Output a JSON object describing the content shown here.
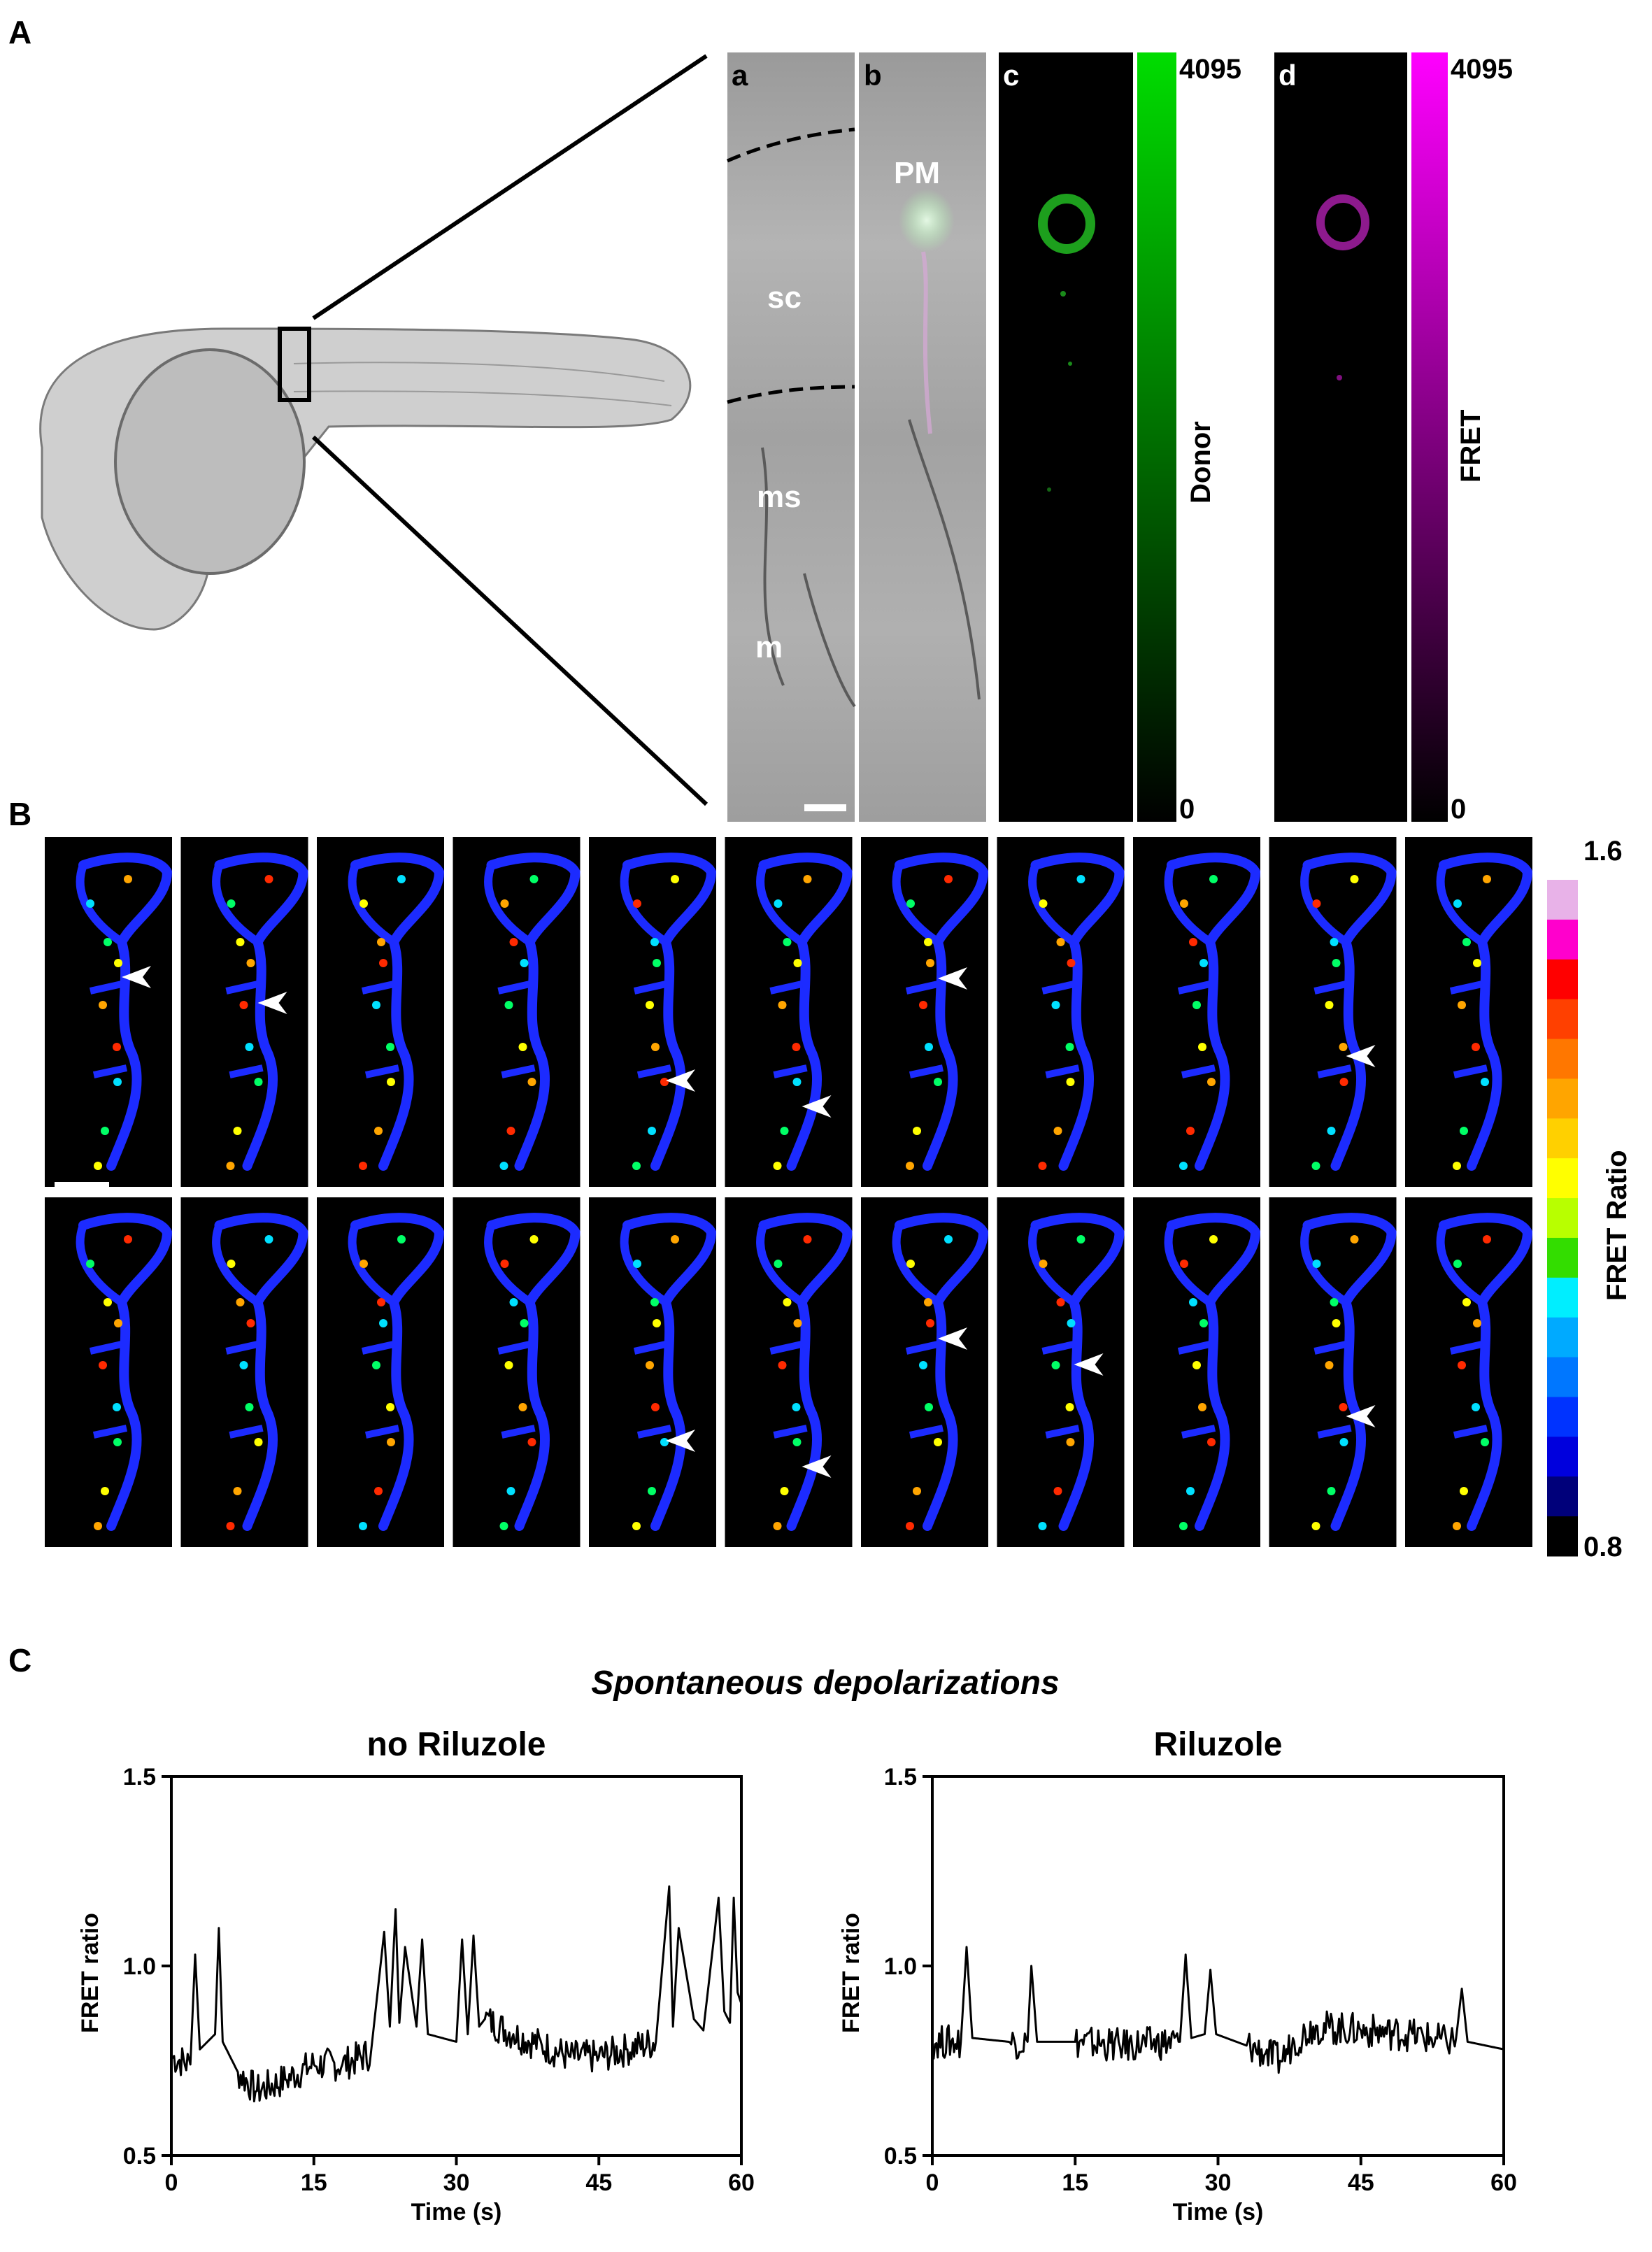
{
  "panels": {
    "A": {
      "letter": "A",
      "subpanels": {
        "a": "a",
        "b": "b",
        "c": "c",
        "d": "d"
      },
      "region_labels": {
        "pm": "PM",
        "sc": "sc",
        "ms": "ms",
        "m": "m"
      },
      "donor_bar": {
        "label": "Donor",
        "max": "4095",
        "min": "0",
        "color": "#00dd00"
      },
      "fret_bar": {
        "label": "FRET",
        "max": "4095",
        "min": "0",
        "color": "#ff00ff"
      }
    },
    "B": {
      "letter": "B",
      "colorbar": {
        "label": "FRET Ratio",
        "max": "1.6",
        "min": "0.8",
        "colors": [
          "#e8b2e8",
          "#ff00cc",
          "#ff0000",
          "#ff4000",
          "#ff7700",
          "#ffa500",
          "#ffd000",
          "#ffff00",
          "#b8ff00",
          "#33dd00",
          "#00eeff",
          "#00aaff",
          "#0077ff",
          "#0033ff",
          "#0000dd",
          "#00007a",
          "#000000"
        ]
      },
      "frames_per_row": 11,
      "arrowheads_row1": [
        0,
        1,
        4,
        5,
        6,
        9
      ],
      "arrowheads_row2": [
        4,
        5,
        6,
        7,
        9
      ]
    },
    "C": {
      "letter": "C",
      "title": "Spontaneous depolarizations"
    }
  },
  "chart_data": [
    {
      "type": "line",
      "title": "no Riluzole",
      "xlabel": "Time (s)",
      "ylabel": "FRET ratio",
      "xlim": [
        0,
        60
      ],
      "ylim": [
        0.5,
        1.5
      ],
      "xticks": [
        "0",
        "15",
        "30",
        "45",
        "60"
      ],
      "yticks": [
        "0.5",
        "1.0",
        "1.5"
      ],
      "series": [
        {
          "x": [
            0,
            2,
            2.5,
            3,
            4.6,
            5,
            5.4,
            7,
            9,
            12,
            15,
            18,
            21,
            22.4,
            23,
            23.6,
            24,
            24.6,
            25.8,
            26.4,
            27,
            30,
            30.6,
            31.2,
            31.8,
            32.4,
            33,
            36,
            39,
            42,
            45,
            48,
            51,
            52.4,
            52.8,
            53.4,
            55,
            56,
            57.6,
            58.2,
            58.8,
            59.2,
            59.6,
            60
          ],
          "y": [
            0.76,
            0.74,
            1.03,
            0.78,
            0.82,
            1.1,
            0.8,
            0.72,
            0.67,
            0.7,
            0.74,
            0.74,
            0.77,
            1.09,
            0.84,
            1.15,
            0.85,
            1.05,
            0.84,
            1.07,
            0.82,
            0.8,
            1.07,
            0.82,
            1.08,
            0.84,
            0.86,
            0.82,
            0.79,
            0.76,
            0.76,
            0.78,
            0.8,
            1.21,
            0.84,
            1.1,
            0.86,
            0.83,
            1.18,
            0.88,
            0.85,
            1.18,
            0.93,
            0.9
          ]
        }
      ]
    },
    {
      "type": "line",
      "title": "Riluzole",
      "xlabel": "Time (s)",
      "ylabel": "FRET ratio",
      "xlim": [
        0,
        60
      ],
      "ylim": [
        0.5,
        1.5
      ],
      "xticks": [
        "0",
        "15",
        "30",
        "45",
        "60"
      ],
      "yticks": [
        "0.5",
        "1.0",
        "1.5"
      ],
      "series": [
        {
          "x": [
            0,
            3,
            3.6,
            4.2,
            8,
            10,
            10.4,
            11,
            15,
            20,
            26,
            26.6,
            27.2,
            28.6,
            29.2,
            29.8,
            33,
            35,
            36.5,
            38,
            40,
            45,
            50,
            54,
            55,
            55.6,
            56.2,
            60
          ],
          "y": [
            0.8,
            0.8,
            1.05,
            0.81,
            0.8,
            0.8,
            1.0,
            0.8,
            0.8,
            0.79,
            0.8,
            1.03,
            0.81,
            0.82,
            0.99,
            0.82,
            0.79,
            0.77,
            0.75,
            0.8,
            0.84,
            0.83,
            0.82,
            0.8,
            0.81,
            0.94,
            0.8,
            0.78
          ]
        }
      ]
    }
  ]
}
